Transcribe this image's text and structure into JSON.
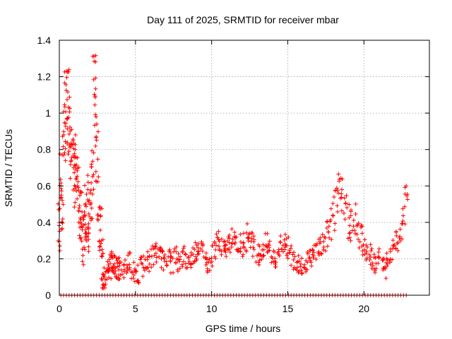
{
  "chart_data": {
    "type": "scatter",
    "title": "Day 111 of 2025, SRMTID for receiver mbar",
    "xlabel": "GPS time / hours",
    "ylabel": "SRMTID / TECUs",
    "xlim": [
      0,
      24.3
    ],
    "ylim": [
      0,
      1.4
    ],
    "x_ticks": [
      0,
      5,
      10,
      15,
      20
    ],
    "x_tick_labels": [
      "0",
      "5",
      "10",
      "15",
      "20"
    ],
    "y_ticks": [
      0,
      0.2,
      0.4,
      0.6,
      0.8,
      1.0,
      1.2,
      1.4
    ],
    "y_tick_labels": [
      "0",
      "0.2",
      "0.4",
      "0.6",
      "0.8",
      "1",
      "1.2",
      "1.4"
    ],
    "grid": true,
    "marker": "plus",
    "series": [
      {
        "name": "SRMTID",
        "color": "#ff0000",
        "x": [
          0.0,
          0.1,
          0.2,
          0.3,
          0.4,
          0.5,
          0.6,
          0.7,
          0.8,
          0.9,
          1.0,
          1.1,
          1.2,
          1.3,
          1.4,
          1.5,
          1.6,
          1.7,
          1.8,
          1.9,
          2.0,
          2.1,
          2.2,
          2.3,
          2.4,
          2.5,
          2.6,
          2.7,
          2.8,
          2.9,
          3.0,
          3.1,
          3.2,
          3.3,
          3.4,
          3.5,
          3.6,
          3.7,
          3.8,
          3.9,
          4.0,
          4.2,
          4.4,
          4.6,
          4.8,
          5.0,
          5.2,
          5.4,
          5.6,
          5.8,
          6.0,
          6.2,
          6.4,
          6.6,
          6.8,
          7.0,
          7.2,
          7.4,
          7.6,
          7.8,
          8.0,
          8.2,
          8.4,
          8.6,
          8.8,
          9.0,
          9.2,
          9.4,
          9.6,
          9.8,
          10.0,
          10.2,
          10.4,
          10.6,
          10.8,
          11.0,
          11.2,
          11.4,
          11.6,
          11.8,
          12.0,
          12.2,
          12.4,
          12.6,
          12.8,
          13.0,
          13.2,
          13.4,
          13.6,
          13.8,
          14.0,
          14.2,
          14.4,
          14.6,
          14.8,
          15.0,
          15.2,
          15.4,
          15.6,
          15.8,
          16.0,
          16.2,
          16.4,
          16.6,
          16.8,
          17.0,
          17.2,
          17.4,
          17.6,
          17.8,
          18.0,
          18.2,
          18.4,
          18.6,
          18.8,
          19.0,
          19.2,
          19.4,
          19.6,
          19.8,
          20.0,
          20.2,
          20.4,
          20.6,
          20.8,
          21.0,
          21.2,
          21.4,
          21.6,
          21.8,
          22.0,
          22.2,
          22.4,
          22.6,
          22.8
        ],
        "y": [
          0.38,
          0.62,
          0.45,
          0.9,
          1.08,
          0.85,
          1.12,
          0.95,
          0.78,
          0.7,
          0.62,
          0.75,
          0.68,
          0.55,
          0.42,
          0.35,
          0.3,
          0.45,
          0.5,
          0.38,
          0.42,
          0.5,
          0.72,
          1.22,
          0.95,
          0.78,
          0.42,
          0.35,
          0.15,
          0.12,
          0.1,
          0.13,
          0.11,
          0.15,
          0.18,
          0.2,
          0.17,
          0.16,
          0.14,
          0.15,
          0.13,
          0.14,
          0.16,
          0.18,
          0.15,
          0.13,
          0.11,
          0.15,
          0.17,
          0.19,
          0.2,
          0.22,
          0.24,
          0.21,
          0.19,
          0.22,
          0.2,
          0.18,
          0.21,
          0.19,
          0.2,
          0.22,
          0.18,
          0.2,
          0.22,
          0.25,
          0.28,
          0.24,
          0.2,
          0.18,
          0.22,
          0.26,
          0.3,
          0.28,
          0.24,
          0.26,
          0.28,
          0.32,
          0.3,
          0.28,
          0.26,
          0.3,
          0.34,
          0.32,
          0.27,
          0.24,
          0.22,
          0.25,
          0.28,
          0.26,
          0.22,
          0.2,
          0.24,
          0.28,
          0.3,
          0.26,
          0.22,
          0.2,
          0.18,
          0.19,
          0.17,
          0.18,
          0.2,
          0.22,
          0.24,
          0.25,
          0.28,
          0.3,
          0.35,
          0.4,
          0.45,
          0.5,
          0.58,
          0.55,
          0.45,
          0.4,
          0.38,
          0.42,
          0.35,
          0.3,
          0.28,
          0.25,
          0.22,
          0.2,
          0.18,
          0.2,
          0.16,
          0.15,
          0.2,
          0.24,
          0.28,
          0.3,
          0.35,
          0.45,
          0.58
        ]
      }
    ],
    "zero_baseline_markers": true
  }
}
